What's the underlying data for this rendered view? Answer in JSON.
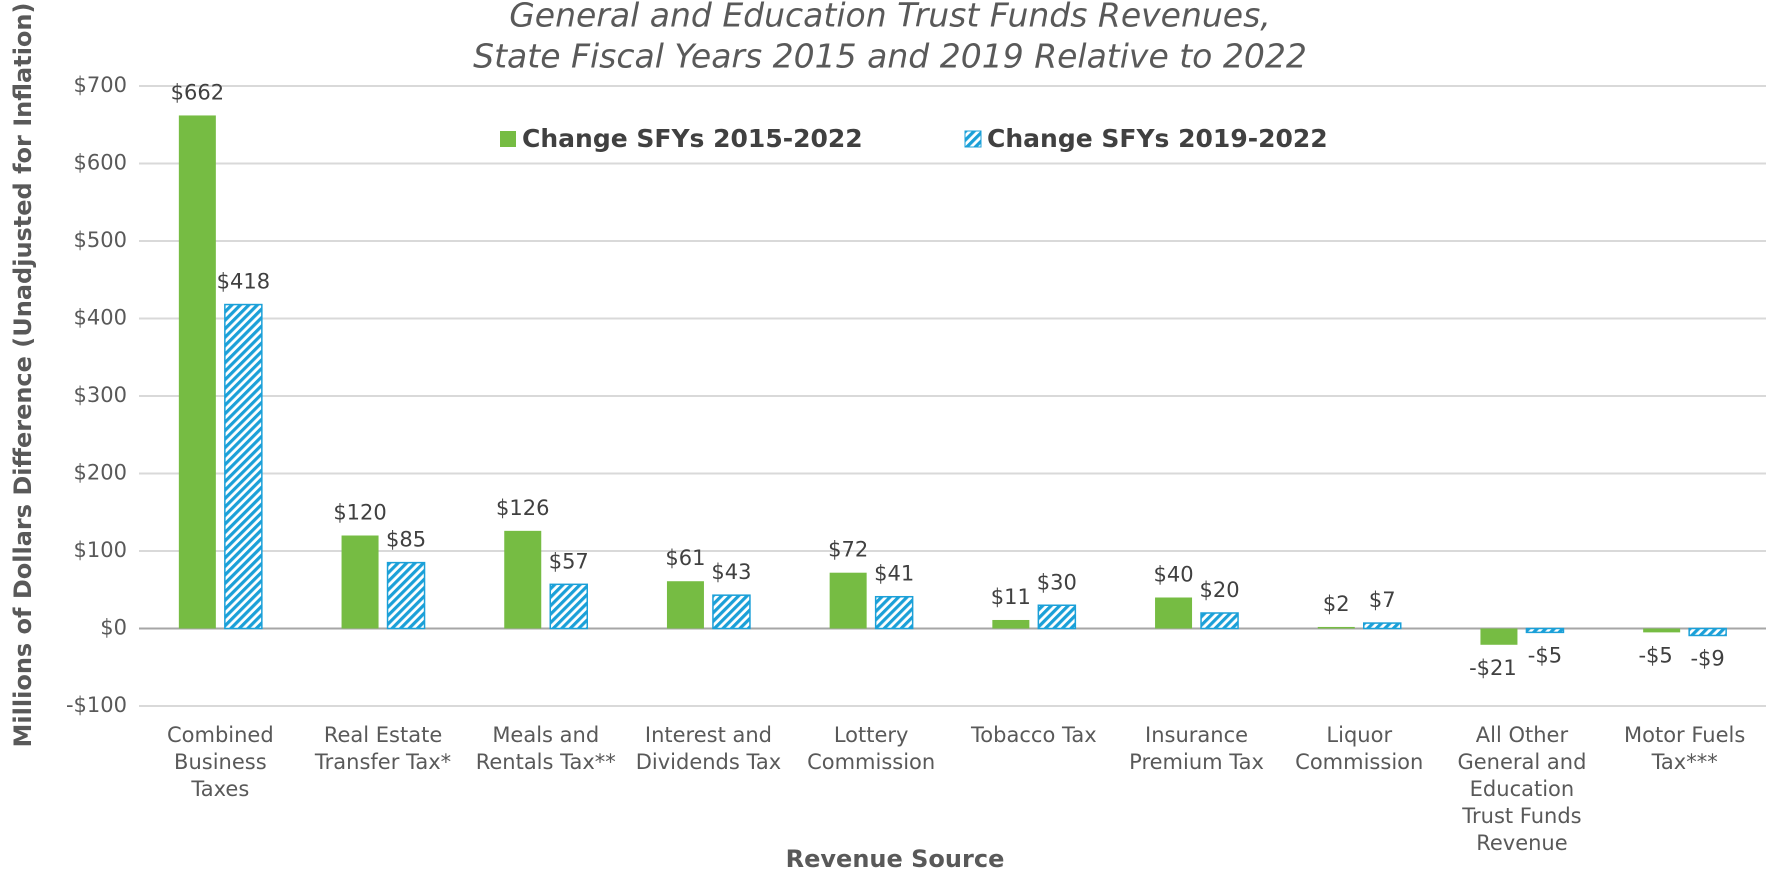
{
  "chart_data": {
    "type": "bar",
    "title": [
      "General and Education Trust Funds Revenues,",
      "State Fiscal Years 2015 and 2019 Relative to 2022"
    ],
    "x_label": "Revenue Source",
    "y_label": "Millions of Dollars Difference (Unadjusted for Inflation)",
    "categories": [
      "Combined Business Taxes",
      "Real Estate Transfer Tax*",
      "Meals and Rentals Tax**",
      "Interest and Dividends Tax",
      "Lottery Commission",
      "Tobacco Tax",
      "Insurance Premium Tax",
      "Liquor Commission",
      "All Other General and Education Trust Funds Revenue",
      "Motor Fuels Tax***"
    ],
    "series": [
      {
        "name": "Change SFYs 2015-2022",
        "color": "#76bc43",
        "pattern": "solid",
        "values": [
          662,
          120,
          126,
          61,
          72,
          11,
          40,
          2,
          -21,
          -5
        ],
        "value_labels": [
          "$662",
          "$120",
          "$126",
          "$61",
          "$72",
          "$11",
          "$40",
          "$2",
          "-$21",
          "-$5"
        ]
      },
      {
        "name": "Change SFYs 2019-2022",
        "color": "#1ba0d8",
        "pattern": "hatch",
        "values": [
          418,
          85,
          57,
          43,
          41,
          30,
          20,
          7,
          -5,
          -9
        ],
        "value_labels": [
          "$418",
          "$85",
          "$57",
          "$43",
          "$41",
          "$30",
          "$20",
          "$7",
          "-$5",
          "-$9"
        ]
      }
    ],
    "ylim": [
      -100,
      700
    ],
    "yticks": [
      {
        "value": -100,
        "label": "-$100"
      },
      {
        "value": 0,
        "label": "$0"
      },
      {
        "value": 100,
        "label": "$100"
      },
      {
        "value": 200,
        "label": "$200"
      },
      {
        "value": 300,
        "label": "$300"
      },
      {
        "value": 400,
        "label": "$400"
      },
      {
        "value": 500,
        "label": "$500"
      },
      {
        "value": 600,
        "label": "$600"
      },
      {
        "value": 700,
        "label": "$700"
      }
    ],
    "grid": true,
    "legend": "top"
  }
}
